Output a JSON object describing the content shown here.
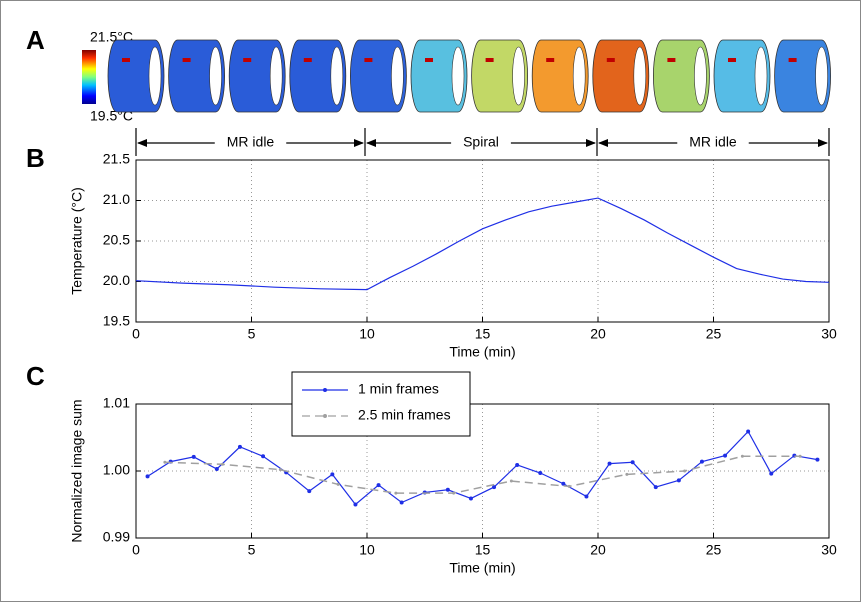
{
  "panel_a": {
    "label": "A",
    "colorbar_max": "21.5°C",
    "colorbar_min": "19.5°C",
    "segments": [
      "MR idle",
      "Spiral",
      "MR idle"
    ]
  },
  "chart_data": [
    {
      "type": "line",
      "label": "B",
      "x_label": "Time (min)",
      "y_label": "Temperature (°C)",
      "x": [
        0,
        2,
        4,
        6,
        8,
        10,
        11,
        12,
        13,
        14,
        15,
        16,
        17,
        18,
        19,
        20,
        21,
        22,
        23,
        24,
        25,
        26,
        27,
        28,
        29,
        30
      ],
      "series": [
        {
          "color": "#1f2fe6",
          "dash": false,
          "marker": false,
          "values": [
            20.01,
            19.98,
            19.96,
            19.93,
            19.91,
            19.9,
            20.05,
            20.19,
            20.34,
            20.5,
            20.65,
            20.76,
            20.86,
            20.93,
            20.98,
            21.03,
            20.9,
            20.76,
            20.6,
            20.45,
            20.3,
            20.16,
            20.09,
            20.03,
            20.0,
            19.99
          ]
        }
      ],
      "xlim": [
        0,
        30
      ],
      "xticks": [
        0,
        5,
        10,
        15,
        20,
        25,
        30
      ],
      "ylim": [
        19.5,
        21.5
      ],
      "yticks": [
        19.5,
        {
          "value": 20,
          "label": "20.0"
        },
        20.5,
        {
          "value": 21,
          "label": "21.0"
        },
        21.5
      ],
      "grid": true
    },
    {
      "type": "line",
      "label": "C",
      "x_label": "Time (min)",
      "y_label": "Normalized image sum",
      "series": [
        {
          "name": "1 min frames",
          "color": "#1f2fe6",
          "dash": false,
          "marker": true,
          "x": [
            0.5,
            1.5,
            2.5,
            3.5,
            4.5,
            5.5,
            6.5,
            7.5,
            8.5,
            9.5,
            10.5,
            11.5,
            12.5,
            13.5,
            14.5,
            15.5,
            16.5,
            17.5,
            18.5,
            19.5,
            20.5,
            21.5,
            22.5,
            23.5,
            24.5,
            25.5,
            26.5,
            27.5,
            28.5,
            29.5
          ],
          "values": [
            0.9992,
            1.0014,
            1.0021,
            1.0003,
            1.0036,
            1.0022,
            0.9998,
            0.997,
            0.9995,
            0.995,
            0.9979,
            0.9953,
            0.9968,
            0.9972,
            0.9959,
            0.9976,
            1.0009,
            0.9997,
            0.9981,
            0.9962,
            1.0011,
            1.0013,
            0.9976,
            0.9986,
            1.0014,
            1.0023,
            1.0059,
            0.9996,
            1.0023,
            1.0017
          ]
        },
        {
          "name": "2.5 min frames",
          "color": "#a0a0a0",
          "dash": true,
          "marker": true,
          "x": [
            1.25,
            3.75,
            6.25,
            8.75,
            11.25,
            13.75,
            16.25,
            18.75,
            21.25,
            23.75,
            26.25,
            28.75
          ],
          "values": [
            1.0013,
            1.001,
            1.0002,
            0.998,
            0.9967,
            0.9967,
            0.9985,
            0.9977,
            0.9995,
            1.0,
            1.0022,
            1.0022
          ]
        }
      ],
      "xlim": [
        0,
        30
      ],
      "xticks": [
        0,
        5,
        10,
        15,
        20,
        25,
        30
      ],
      "ylim": [
        0.99,
        1.01
      ],
      "yticks": [
        0.99,
        {
          "value": 1,
          "label": "1.00"
        },
        1.01
      ],
      "grid": true,
      "legend": "upper left"
    }
  ]
}
